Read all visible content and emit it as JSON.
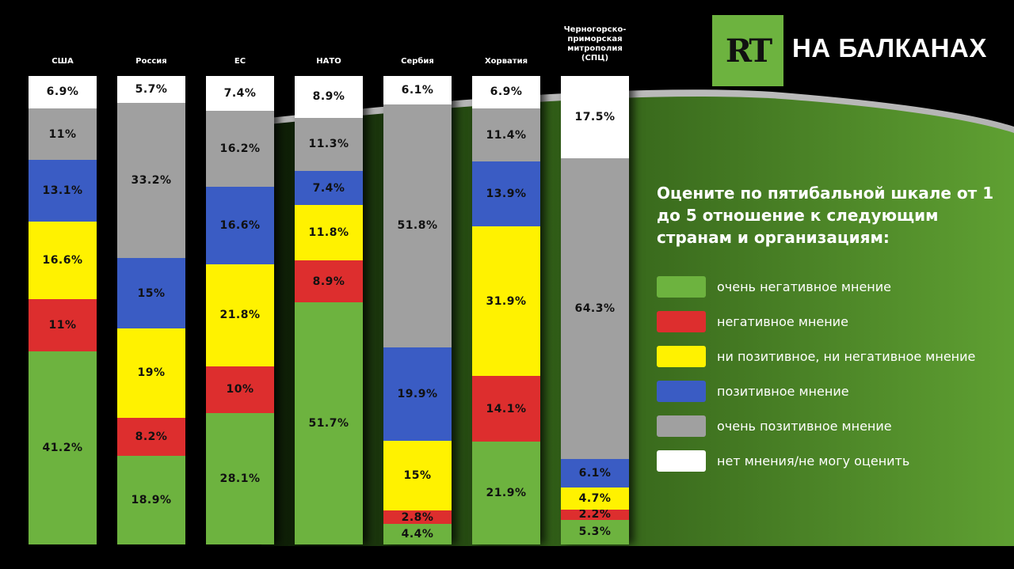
{
  "brand": {
    "logo_text": "RT",
    "title": "НА БАЛКАНАХ",
    "logo_color": "#6db33f"
  },
  "question": "Оцените по пятибальной шкале от 1 до 5 отношение к следующим странам и организациям:",
  "chart_data": {
    "type": "bar",
    "stacked": true,
    "orientation": "vertical",
    "categories": [
      "США",
      "Россия",
      "ЕС",
      "НАТО",
      "Сербия",
      "Хорватия",
      "Черногорско-приморская митрополия (СПЦ)"
    ],
    "legend_placement": "right",
    "series": [
      {
        "name": "очень негативное мнение",
        "color": "#6db33f",
        "values": [
          41.2,
          18.9,
          28.1,
          51.7,
          4.4,
          21.9,
          5.3
        ]
      },
      {
        "name": "негативное мнение",
        "color": "#dd2e2e",
        "values": [
          11,
          8.2,
          10,
          8.9,
          2.8,
          14.1,
          2.2
        ]
      },
      {
        "name": "ни позитивное, ни негативное мнение",
        "color": "#fff200",
        "values": [
          16.6,
          19,
          21.8,
          11.8,
          15,
          31.9,
          4.7
        ]
      },
      {
        "name": "позитивное мнение",
        "color": "#3a5cc4",
        "values": [
          13.1,
          15,
          16.6,
          7.4,
          19.9,
          13.9,
          6.1
        ]
      },
      {
        "name": "очень позитивное мнение",
        "color": "#a0a0a0",
        "values": [
          11,
          33.2,
          16.2,
          11.3,
          51.8,
          11.4,
          64.3
        ]
      },
      {
        "name": "нет мнения/не могу оценить",
        "color": "#ffffff",
        "values": [
          6.9,
          5.7,
          7.4,
          8.9,
          6.1,
          6.9,
          17.5
        ]
      }
    ],
    "value_suffix": "%"
  }
}
